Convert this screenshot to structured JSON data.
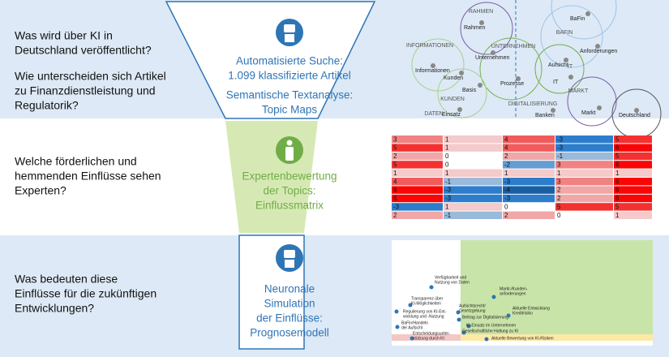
{
  "sections": [
    {
      "questions": [
        [
          "Was wird über KI in",
          "Deutschland veröffentlicht?"
        ],
        [
          "Wie unterscheiden sich Artikel",
          "zu Finanzdienstleistung und",
          "Regulatorik?"
        ]
      ],
      "funnel": [
        [
          "Automatisierte Suche:",
          "1.099 klassifizierte Artikel"
        ],
        [
          "Semantische Textanalyse:",
          "Topic Maps"
        ]
      ]
    },
    {
      "questions": [
        [
          "Welche förderlichen und",
          "hemmenden Einflüsse sehen",
          "Experten?"
        ]
      ],
      "funnel": [
        [
          "Expertenbewertung",
          "der Topics:",
          "Einflussmatrix"
        ]
      ]
    },
    {
      "questions": [
        [
          "Was bedeuten diese",
          "Einflüsse für die zukünftigen",
          "Entwicklungen?"
        ]
      ],
      "funnel": [
        [
          "Neuronale",
          "Simulation",
          "der Einflüsse:",
          "Prognosemodell"
        ]
      ]
    }
  ],
  "topic_map": {
    "clusters": [
      "RAHMEN",
      "INFORMATIONEN",
      "UNTERNEHMEN",
      "BAFIN",
      "IT",
      "KUNDEN",
      "DIGITALISIERUNG",
      "MARKT",
      "DATEN"
    ],
    "terms": [
      "Rahmen",
      "BaFin",
      "Informationen",
      "Unternehmen",
      "Anforderungen",
      "Aufsicht",
      "IT",
      "Kunden",
      "Basis",
      "Prozesse",
      "Markt",
      "Einsatz",
      "Banken",
      "Deutschland"
    ]
  },
  "matrix": [
    [
      3,
      1,
      4,
      -3,
      5
    ],
    [
      5,
      1,
      4,
      -3,
      6
    ],
    [
      2,
      0,
      2,
      -1,
      5
    ],
    [
      5,
      0,
      -2,
      3,
      6
    ],
    [
      1,
      1,
      1,
      1,
      1
    ],
    [
      4,
      -1,
      -3,
      3,
      6
    ],
    [
      6,
      -3,
      -4,
      2,
      6
    ],
    [
      6,
      -3,
      -3,
      2,
      6
    ],
    [
      -3,
      1,
      0,
      5,
      5
    ],
    [
      2,
      -1,
      2,
      0,
      1
    ]
  ],
  "forecast": {
    "labels": [
      [
        "Verfügbarkeit und",
        "Nutzung von Daten"
      ],
      [
        "Transparenz über",
        "KI-Möglichkeiten"
      ],
      [
        "Regulierung von KI-Ent-",
        "wicklung und -Nutzung"
      ],
      [
        "BaFin/Handeln",
        "der Aufsicht"
      ],
      [
        "Entscheidungsunter-",
        "stützung durch KI"
      ],
      [
        "Aufsichtsrecht/",
        "Gesetzgebung"
      ],
      [
        "Beitrag zur Digitalisierung"
      ],
      [
        "KI-Einsatz im Unternehmen"
      ],
      [
        "Gesellschaftliche Haltung zu KI"
      ],
      [
        "Markt-/Kunden-",
        "anforderungen"
      ],
      [
        "Aktuelle Entwicklung",
        "Kreditrisiko"
      ],
      [
        "Aktuelle Bewertung von KI-Risiken"
      ]
    ]
  }
}
